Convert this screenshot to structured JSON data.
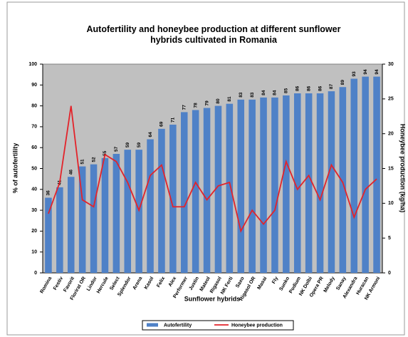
{
  "chart_data": {
    "type": "bar-line",
    "title": "Autofertility and honeybee production at different sunflower hybrids cultivated in Romania",
    "xlabel": "Sunflower hybrids",
    "ylabel": "% of autofertility",
    "y2label": "Honeybee production (kg/ha)",
    "categories": [
      "Romina",
      "Festiv",
      "Favorit",
      "Florirat OR",
      "Lindor",
      "Hercule",
      "Select",
      "Splendor",
      "Arena",
      "Kasol",
      "Felix",
      "Alex",
      "Performer",
      "Justin",
      "Mateol",
      "Rigasol",
      "NK Ferti",
      "Saxo",
      "Rigasol OR",
      "Masai",
      "Fly",
      "Sunko",
      "Podium",
      "NK Dolbi",
      "Opera PR",
      "Melody",
      "Sanay",
      "Alexandra",
      "Huracan",
      "NK Armoni"
    ],
    "series": [
      {
        "name": "Autofertility",
        "type": "bar",
        "color": "#4f81c7",
        "axis": "y",
        "values": [
          36,
          41,
          46,
          51,
          52,
          55,
          57,
          59,
          59,
          64,
          69,
          71,
          77,
          78,
          79,
          80,
          81,
          83,
          83,
          84,
          84,
          85,
          86,
          86,
          86,
          87,
          89,
          93,
          94,
          94
        ]
      },
      {
        "name": "Honeybee production",
        "type": "line",
        "color": "#e3232a",
        "axis": "y2",
        "values": [
          8.5,
          13,
          24,
          10.5,
          9.5,
          17,
          16,
          13,
          9,
          14,
          15.5,
          9.5,
          9.5,
          13,
          10.5,
          12.5,
          13,
          6,
          9,
          7,
          9,
          16,
          12,
          14,
          10.5,
          15.5,
          13,
          8,
          12,
          13.5
        ]
      }
    ],
    "ylim": [
      0,
      100
    ],
    "yticks": [
      0,
      10,
      20,
      30,
      40,
      50,
      60,
      70,
      80,
      90,
      100
    ],
    "y2lim": [
      0,
      30
    ],
    "y2ticks": [
      0,
      5,
      10,
      15,
      20,
      25,
      30
    ],
    "grid": false,
    "plot_background": "#c0c0c0",
    "legend": "bottom"
  }
}
